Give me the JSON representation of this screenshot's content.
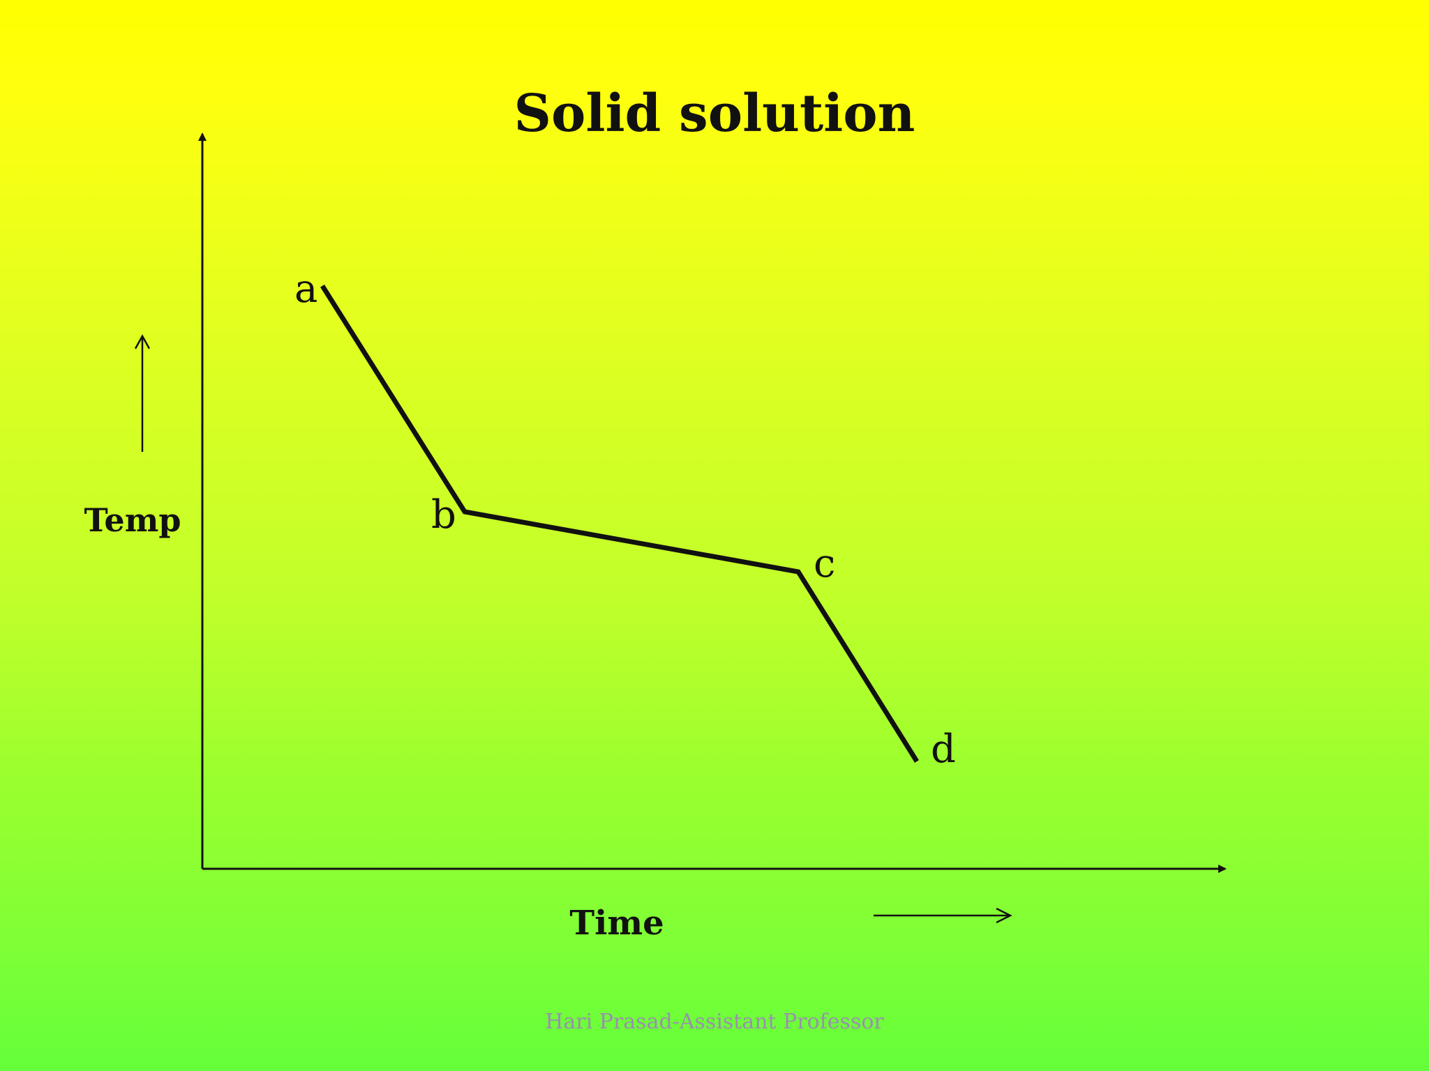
{
  "slide": {
    "title": "Solid solution",
    "footer": "Hari Prasad-Assistant Professor",
    "colors": {
      "background_top": "#ffff00",
      "background_bottom": "#64ff3a",
      "ink": "#111111",
      "footer_text": "#9a8fb0"
    }
  },
  "diagram": {
    "y_axis_label": "Temp",
    "x_axis_label": "Time",
    "points": [
      {
        "label": "a"
      },
      {
        "label": "b"
      },
      {
        "label": "c"
      },
      {
        "label": "d"
      }
    ]
  }
}
